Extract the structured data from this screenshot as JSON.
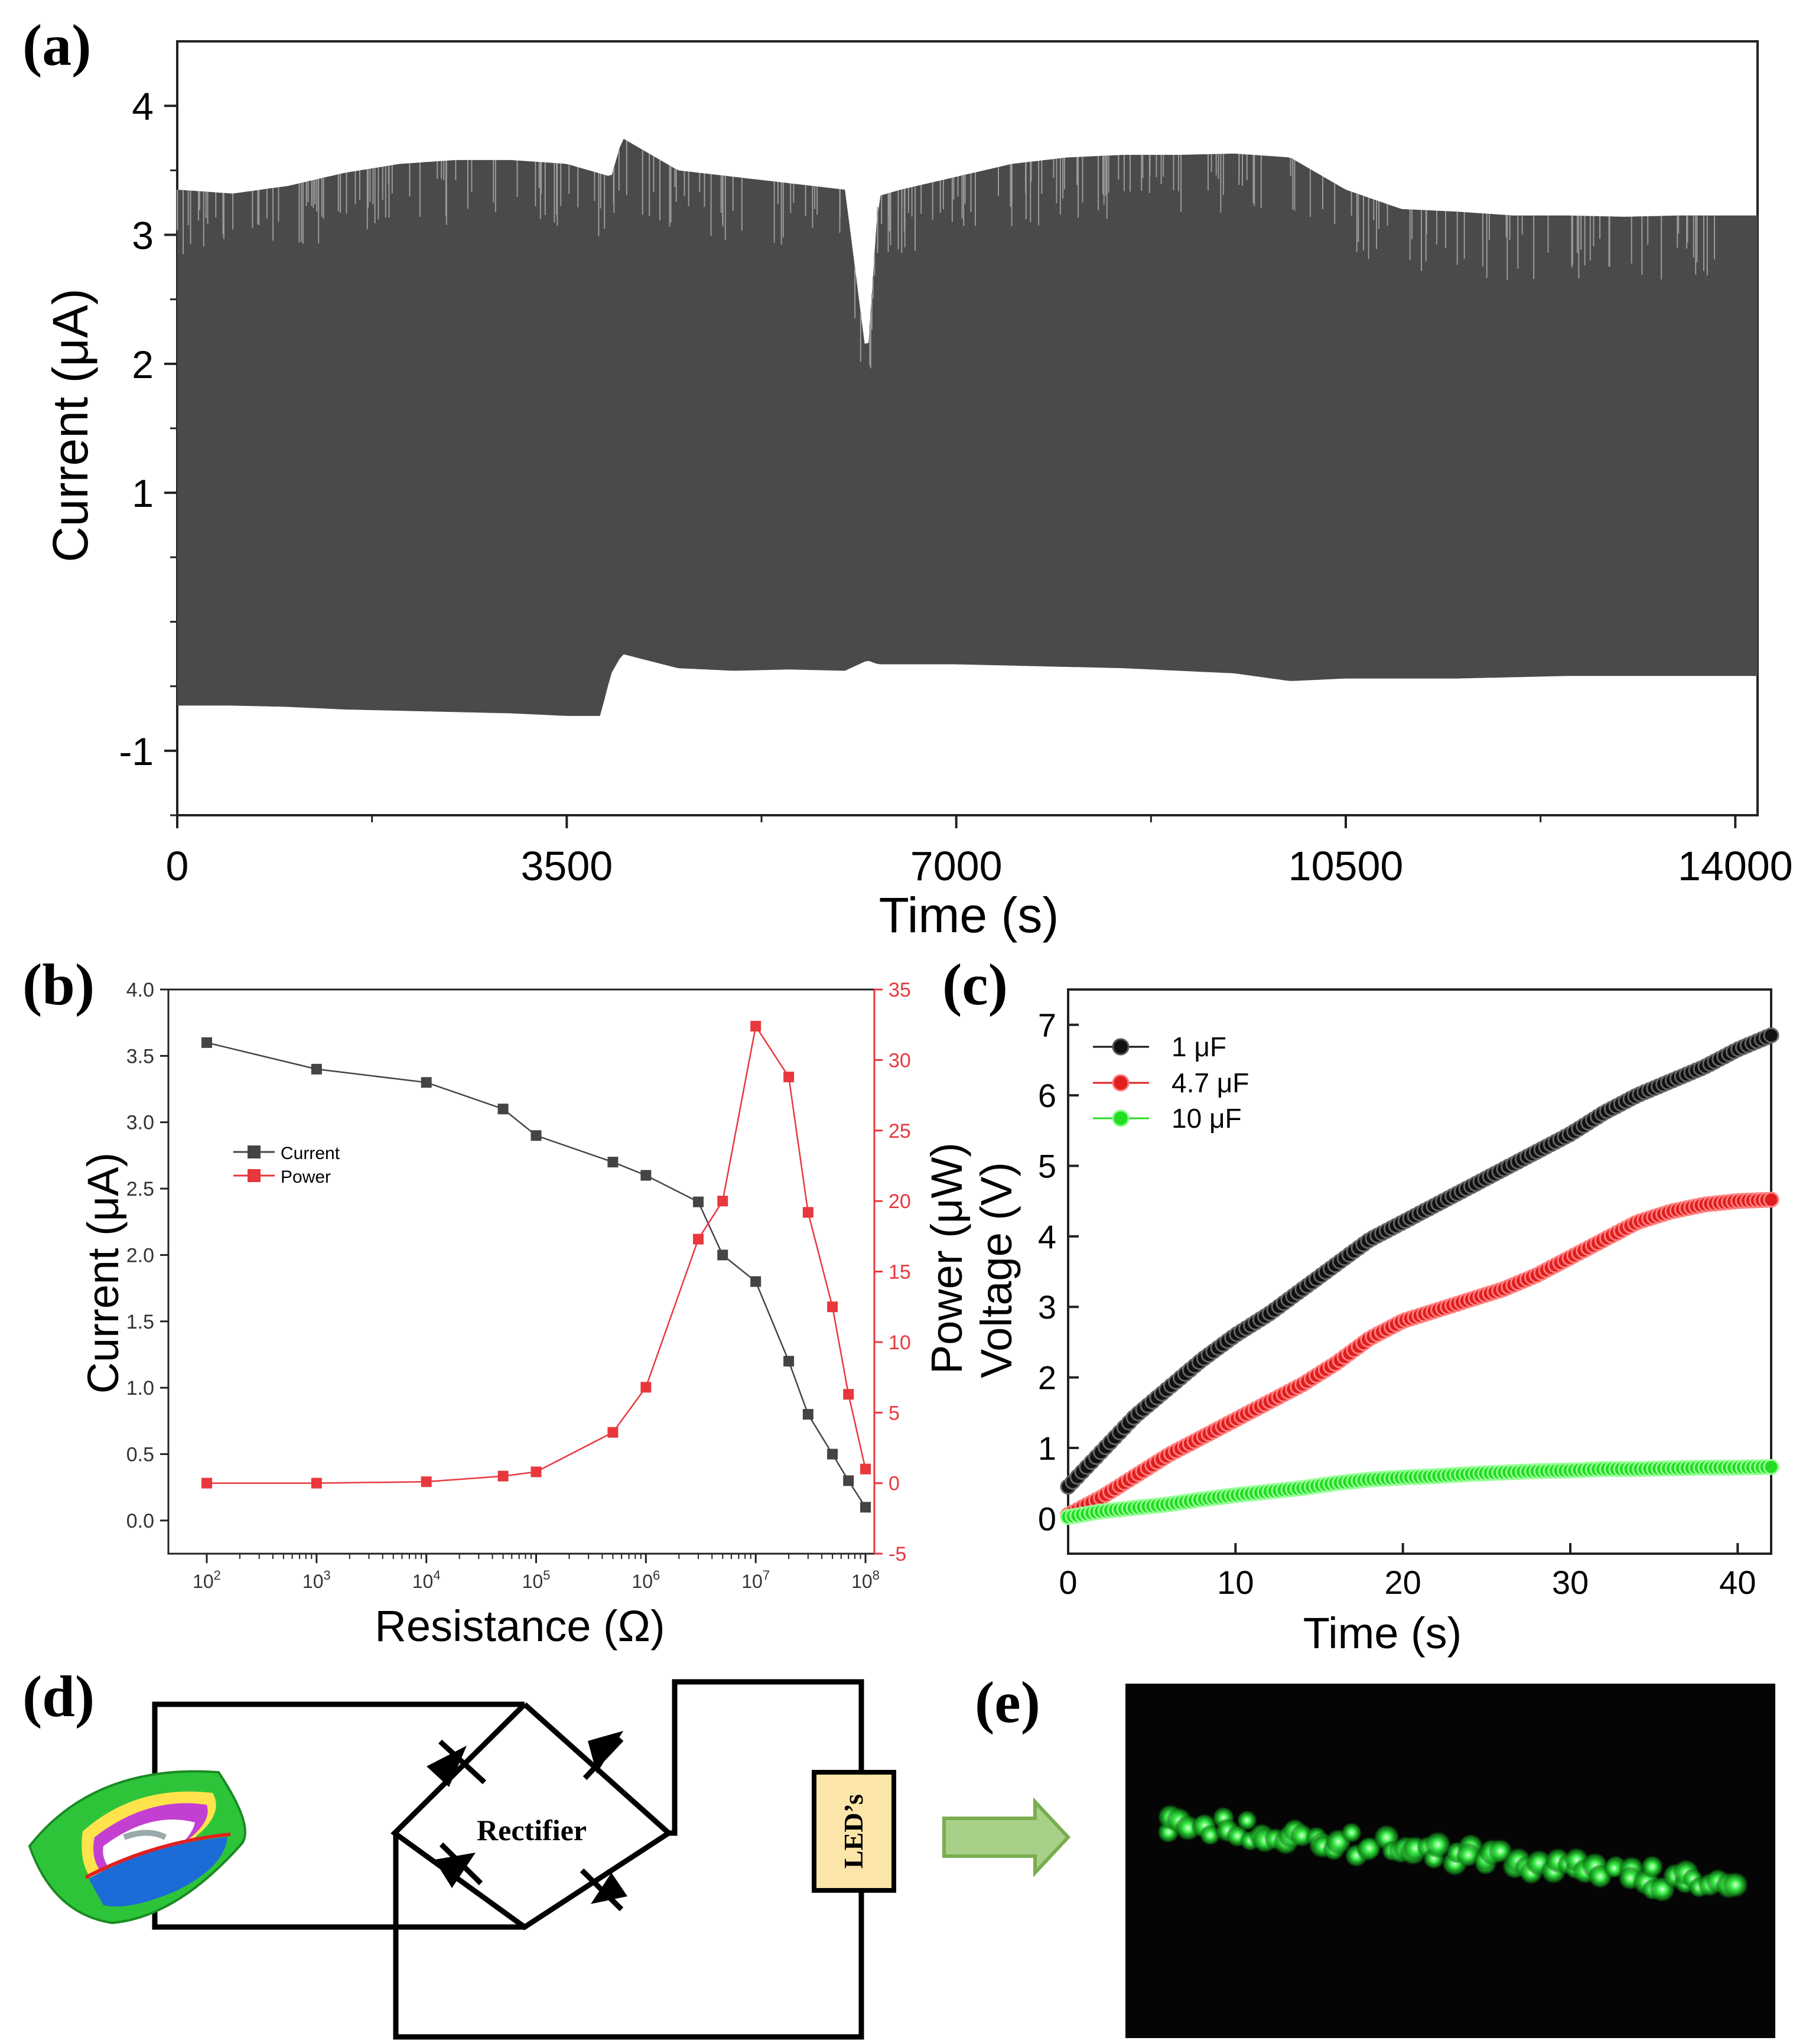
{
  "panels": {
    "a": "(a)",
    "b": "(b)",
    "c": "(c)",
    "d": "(d)",
    "e": "(e)"
  },
  "chart_data": [
    {
      "id": "a",
      "type": "line",
      "title": "",
      "xlabel": "Time (s)",
      "ylabel": "Current (μA)",
      "xlim": [
        0,
        14200
      ],
      "ylim": [
        -1.5,
        4.5
      ],
      "xticks": [
        "0",
        "3500",
        "7000",
        "10500",
        "14000"
      ],
      "yticks": [
        "-1",
        "1",
        "2",
        "3",
        "4"
      ],
      "color": "#4a4a4a",
      "series": [
        {
          "name": "upper envelope",
          "x": [
            0,
            500,
            1000,
            1500,
            2000,
            2500,
            3000,
            3500,
            3900,
            4000,
            4500,
            5000,
            5500,
            6000,
            6200,
            6300,
            6500,
            7000,
            7500,
            8000,
            8500,
            9000,
            9500,
            10000,
            10500,
            11000,
            11500,
            12000,
            12500,
            13000,
            13500,
            14000,
            14200
          ],
          "y": [
            3.35,
            3.32,
            3.38,
            3.48,
            3.55,
            3.58,
            3.58,
            3.55,
            3.45,
            3.75,
            3.5,
            3.45,
            3.4,
            3.35,
            2.0,
            3.3,
            3.35,
            3.45,
            3.55,
            3.6,
            3.62,
            3.62,
            3.63,
            3.6,
            3.35,
            3.2,
            3.18,
            3.15,
            3.15,
            3.14,
            3.15,
            3.15,
            3.15
          ]
        },
        {
          "name": "lower envelope",
          "x": [
            0,
            500,
            1000,
            1500,
            2000,
            2500,
            3000,
            3500,
            3800,
            3900,
            4000,
            4500,
            5000,
            5500,
            6000,
            6200,
            6300,
            6500,
            7000,
            7500,
            8000,
            8500,
            9000,
            9500,
            10000,
            10500,
            11000,
            11500,
            12000,
            12500,
            13000,
            13500,
            14000,
            14200
          ],
          "y": [
            -0.65,
            -0.65,
            -0.66,
            -0.68,
            -0.69,
            -0.7,
            -0.71,
            -0.73,
            -0.73,
            -0.4,
            -0.25,
            -0.36,
            -0.38,
            -0.37,
            -0.38,
            -0.3,
            -0.33,
            -0.33,
            -0.33,
            -0.34,
            -0.35,
            -0.36,
            -0.38,
            -0.4,
            -0.46,
            -0.44,
            -0.44,
            -0.44,
            -0.43,
            -0.42,
            -0.42,
            -0.42,
            -0.42,
            -0.42
          ]
        }
      ]
    },
    {
      "id": "b",
      "type": "line",
      "xscale": "log",
      "xlabel": "Resistance (Ω)",
      "ylabel": "Current (μA)",
      "y2label": "Power (μW)",
      "xlim": [
        100.0,
        100000000.0
      ],
      "ylim": [
        -0.25,
        4.0
      ],
      "y2lim": [
        -5,
        35
      ],
      "yticks": [
        "0.0",
        "0.5",
        "1.0",
        "1.5",
        "2.0",
        "2.5",
        "3.0",
        "3.5",
        "4.0"
      ],
      "y2ticks": [
        "-5",
        "0",
        "5",
        "10",
        "15",
        "20",
        "25",
        "30",
        "35"
      ],
      "xticks": [
        "10^2",
        "10^3",
        "10^4",
        "10^5",
        "10^6",
        "10^7",
        "10^8"
      ],
      "legend": [
        "Current",
        "Power"
      ],
      "legend_position": "upper-left",
      "series": [
        {
          "name": "Current",
          "axis": "left",
          "color": "#444444",
          "x": [
            100,
            1000,
            10000,
            50000,
            100000,
            500000,
            1000000,
            3000000,
            5000000,
            10000000,
            20000000,
            30000000,
            50000000,
            70000000,
            100000000
          ],
          "y": [
            3.6,
            3.4,
            3.3,
            3.1,
            2.9,
            2.7,
            2.6,
            2.4,
            2.0,
            1.8,
            1.2,
            0.8,
            0.5,
            0.3,
            0.1
          ]
        },
        {
          "name": "Power",
          "axis": "right",
          "color": "#e8383d",
          "x": [
            100,
            1000,
            10000,
            50000,
            100000,
            500000,
            1000000,
            3000000,
            5000000,
            10000000,
            20000000,
            30000000,
            50000000,
            70000000,
            100000000
          ],
          "y": [
            0.0,
            0.0,
            0.1,
            0.5,
            0.8,
            3.6,
            6.8,
            17.3,
            20.0,
            32.4,
            28.8,
            19.2,
            12.5,
            6.3,
            1.0
          ]
        }
      ]
    },
    {
      "id": "c",
      "type": "scatter",
      "xlabel": "Time (s)",
      "ylabel": "Voltage (V)",
      "xlim": [
        0,
        42
      ],
      "ylim": [
        -0.5,
        7.5
      ],
      "xticks": [
        "0",
        "10",
        "20",
        "30",
        "40"
      ],
      "yticks": [
        "0",
        "1",
        "2",
        "3",
        "4",
        "5",
        "6",
        "7"
      ],
      "legend_position": "upper-left",
      "series": [
        {
          "name": "1 μF",
          "color": "#111111",
          "x": [
            0,
            2,
            4,
            6,
            8,
            10,
            12,
            14,
            16,
            18,
            20,
            22,
            24,
            26,
            28,
            30,
            32,
            34,
            36,
            38,
            40,
            42
          ],
          "y": [
            0.45,
            0.95,
            1.45,
            1.85,
            2.25,
            2.6,
            2.9,
            3.25,
            3.6,
            3.95,
            4.2,
            4.45,
            4.7,
            4.95,
            5.2,
            5.45,
            5.75,
            6.0,
            6.2,
            6.4,
            6.65,
            6.85
          ]
        },
        {
          "name": "4.7 μF",
          "color": "#e01e1e",
          "x": [
            0,
            2,
            4,
            6,
            8,
            10,
            12,
            14,
            16,
            18,
            20,
            22,
            24,
            26,
            28,
            30,
            32,
            34,
            36,
            38,
            40,
            42
          ],
          "y": [
            0.05,
            0.3,
            0.6,
            0.9,
            1.15,
            1.4,
            1.65,
            1.9,
            2.2,
            2.55,
            2.8,
            2.95,
            3.1,
            3.25,
            3.45,
            3.7,
            3.95,
            4.2,
            4.35,
            4.45,
            4.5,
            4.52
          ]
        },
        {
          "name": "10 μF",
          "color": "#22dd22",
          "x": [
            0,
            2,
            4,
            6,
            8,
            10,
            12,
            14,
            16,
            18,
            20,
            22,
            24,
            26,
            28,
            30,
            32,
            34,
            36,
            38,
            40,
            42
          ],
          "y": [
            0.02,
            0.1,
            0.15,
            0.2,
            0.27,
            0.33,
            0.38,
            0.43,
            0.5,
            0.55,
            0.58,
            0.6,
            0.63,
            0.65,
            0.67,
            0.68,
            0.7,
            0.7,
            0.71,
            0.72,
            0.72,
            0.73
          ]
        }
      ]
    }
  ],
  "diagram_d": {
    "rectifier_label": "Rectifier",
    "led_label": "LED’s"
  }
}
